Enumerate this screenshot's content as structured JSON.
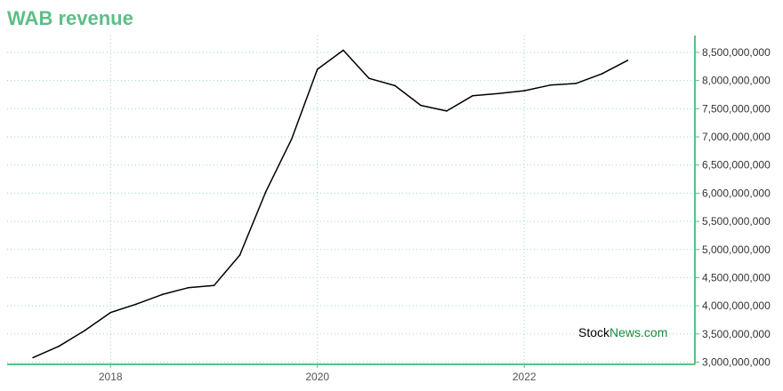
{
  "header": {
    "title": "WAB revenue"
  },
  "watermark": {
    "part1": "Stock",
    "part2": "News.com"
  },
  "colors": {
    "accent": "#5dbf86",
    "line": "#000000",
    "grid": "#9ad9c0",
    "watermark_accent": "#1a8a3c"
  },
  "chart_data": {
    "type": "line",
    "title": "WAB revenue",
    "xlabel": "",
    "ylabel": "",
    "grid": true,
    "y_axis_side": "right",
    "xlim": [
      2017.0,
      2023.65
    ],
    "ylim": [
      2960000000,
      8800000000
    ],
    "x_ticks": [
      2018,
      2020,
      2022
    ],
    "x_tick_labels": [
      "2018",
      "2020",
      "2022"
    ],
    "y_ticks": [
      3000000000,
      3500000000,
      4000000000,
      4500000000,
      5000000000,
      5500000000,
      6000000000,
      6500000000,
      7000000000,
      7500000000,
      8000000000,
      8500000000
    ],
    "y_tick_labels": [
      "3,000,000,000",
      "3,500,000,000",
      "4,000,000,000",
      "4,500,000,000",
      "5,000,000,000",
      "5,500,000,000",
      "6,000,000,000",
      "6,500,000,000",
      "7,000,000,000",
      "7,500,000,000",
      "8,000,000,000",
      "8,500,000,000"
    ],
    "series": [
      {
        "x": [
          2017.25,
          2017.5,
          2017.75,
          2018.0,
          2018.25,
          2018.5,
          2018.75,
          2019.0,
          2019.25,
          2019.5,
          2019.75,
          2020.0,
          2020.25,
          2020.5,
          2020.75,
          2021.0,
          2021.25,
          2021.5,
          2021.75,
          2022.0,
          2022.25,
          2022.5,
          2022.75,
          2023.0
        ],
        "y": [
          3080000000,
          3280000000,
          3560000000,
          3880000000,
          4030000000,
          4200000000,
          4320000000,
          4360000000,
          4900000000,
          6020000000,
          6960000000,
          8200000000,
          8540000000,
          8040000000,
          7910000000,
          7560000000,
          7460000000,
          7730000000,
          7770000000,
          7820000000,
          7920000000,
          7950000000,
          8120000000,
          8360000000
        ]
      }
    ]
  }
}
